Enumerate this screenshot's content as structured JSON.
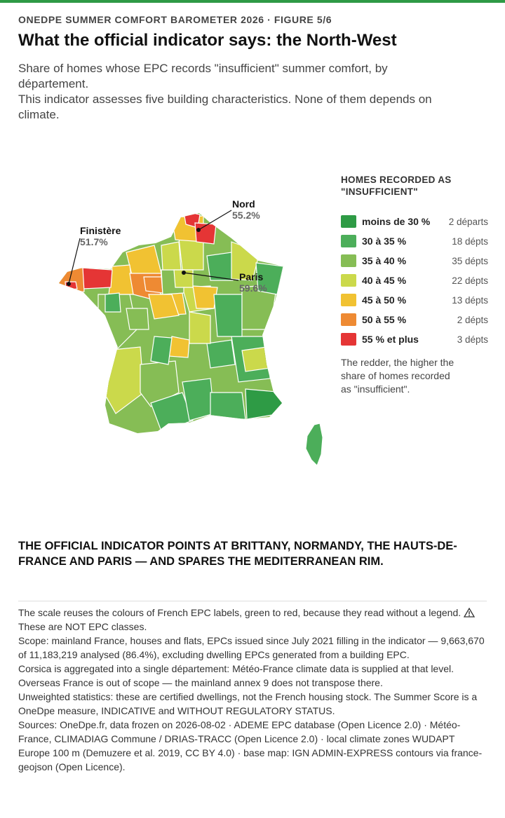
{
  "header": {
    "kicker": "ONEDPE SUMMER COMFORT BAROMETER 2026 · FIGURE 5/6",
    "title": "What the official indicator says: the North-West",
    "subtitle_lines": [
      "Share of homes whose EPC records \"insufficient\" summer comfort, by département.",
      "This indicator assesses five building characteristics. None of them depends on climate."
    ]
  },
  "map": {
    "callouts": [
      {
        "name": "Nord",
        "value": "55.2%"
      },
      {
        "name": "Finistère",
        "value": "51.7%"
      },
      {
        "name": "Paris",
        "value": "59.6%"
      }
    ]
  },
  "legend": {
    "title": "HOMES RECORDED AS \"INSUFFICIENT\"",
    "items": [
      {
        "label": "moins de 30 %",
        "count": "2 départs",
        "color": "#2e9b45"
      },
      {
        "label": "30 à 35 %",
        "count": "18 dépts",
        "color": "#4cae5a"
      },
      {
        "label": "35 à 40 %",
        "count": "35 dépts",
        "color": "#86bd55"
      },
      {
        "label": "40 à 45 %",
        "count": "22 dépts",
        "color": "#cbd94b"
      },
      {
        "label": "45 à 50 %",
        "count": "13 dépts",
        "color": "#f1c232"
      },
      {
        "label": "50 à 55 %",
        "count": "2 dépts",
        "color": "#ee8a33"
      },
      {
        "label": "55 % et plus",
        "count": "3 dépts",
        "color": "#e53535"
      }
    ],
    "note": "The redder, the higher the share of homes recorded as \"insufficient\"."
  },
  "headline": "THE OFFICIAL INDICATOR POINTS AT BRITTANY, NORMANDY, THE HAUTS-DE-FRANCE AND PARIS — AND SPARES THE MEDITERRANEAN RIM.",
  "notes": {
    "p1_before": "The scale reuses the colours of French EPC labels, green to red, because they read without a legend.",
    "p1_after": "These are NOT EPC classes.",
    "p2": "Scope: mainland France, houses and flats, EPCs issued since July 2021 filling in the indicator — 9,663,670 of 11,183,219 analysed (86.4%), excluding dwelling EPCs generated from a building EPC.",
    "p3": "Corsica is aggregated into a single département: Météo-France climate data is supplied at that level. Overseas France is out of scope — the mainland annex 9 does not transpose there.",
    "p4": "Unweighted statistics: these are certified dwellings, not the French housing stock. The Summer Score is a OneDpe measure, INDICATIVE and WITHOUT REGULATORY STATUS.",
    "p5": "Sources: OneDpe.fr, data frozen on 2026-08-02 · ADEME EPC database (Open Licence 2.0) · Météo-France, CLIMADIAG Commune / DRIAS-TRACC (Open Licence 2.0) · local climate zones WUDAPT Europe 100 m (Demuzere et al. 2019, CC BY 4.0) · base map: IGN ADMIN-EXPRESS contours via france-geojson (Open Licence)."
  }
}
